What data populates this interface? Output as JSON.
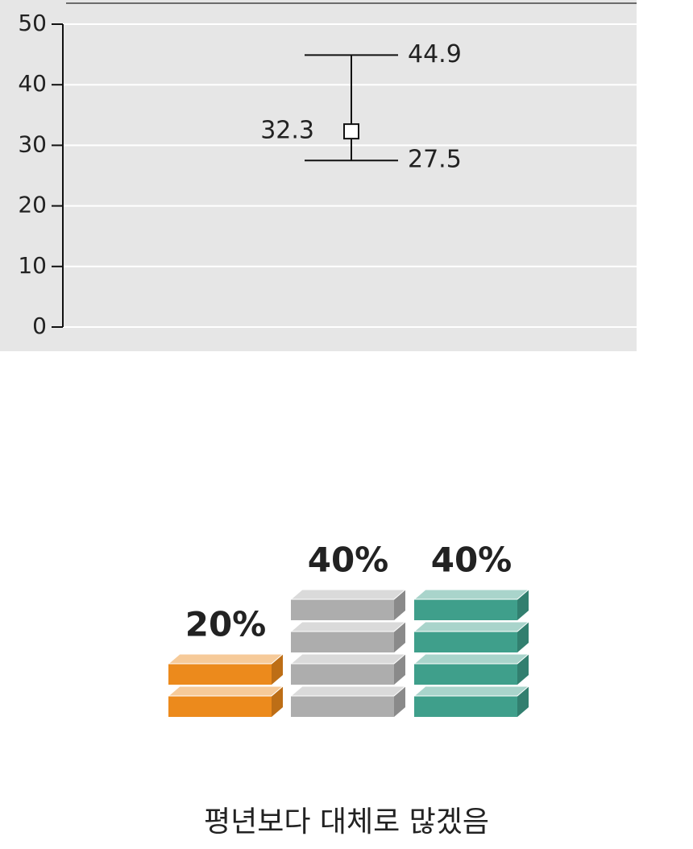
{
  "chart_data": [
    {
      "type": "errorbar",
      "series": [
        {
          "values": [
            32.3
          ],
          "low": [
            27.5
          ],
          "high": [
            44.9
          ]
        }
      ],
      "ylim": [
        0,
        50
      ],
      "yticks": [
        0,
        10,
        20,
        30,
        40,
        50
      ],
      "grid": true
    },
    {
      "type": "blocks",
      "values": [
        20,
        40,
        40
      ],
      "value_labels": [
        "20%",
        "40%",
        "40%"
      ],
      "colors": [
        "#ec8a1c",
        "#adadad",
        "#3f9f8b"
      ],
      "caption": "평년보다 대체로 많겠음"
    }
  ]
}
